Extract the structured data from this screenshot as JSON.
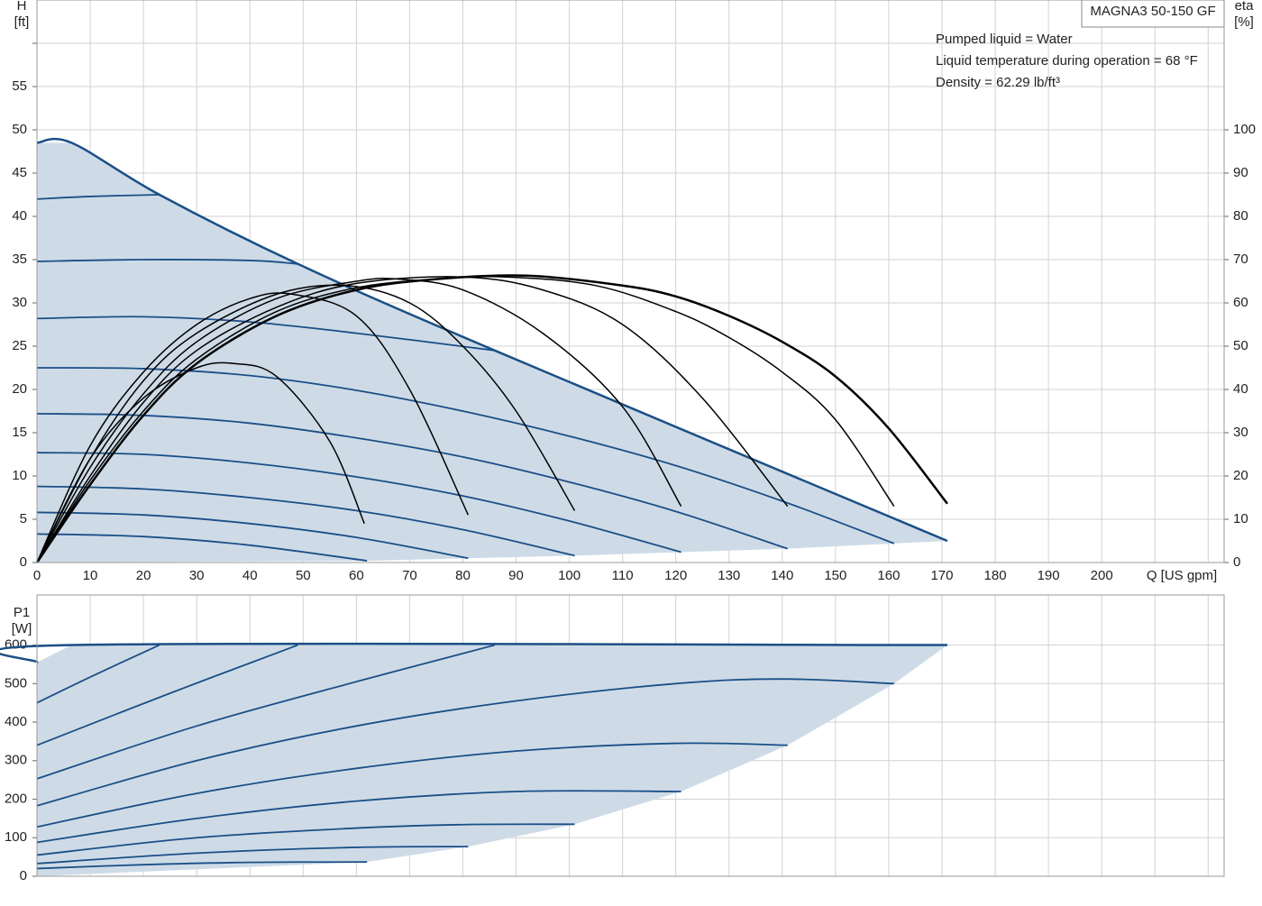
{
  "chart_data": [
    {
      "type": "line",
      "x_label": "Q [US gpm]",
      "y_label": [
        "H",
        "[ft]"
      ],
      "y2_label": [
        "eta",
        "[%]"
      ],
      "xlim": [
        0,
        223
      ],
      "ylim": [
        0,
        65
      ],
      "y2lim": [
        0,
        130
      ],
      "xticks": [
        0,
        10,
        20,
        30,
        40,
        50,
        60,
        70,
        80,
        90,
        100,
        110,
        120,
        130,
        140,
        150,
        160,
        170,
        180,
        190,
        200,
        {
          "value": 210,
          "label": null
        },
        {
          "value": 220,
          "label": null
        }
      ],
      "yticks": [
        0,
        5,
        10,
        15,
        20,
        25,
        30,
        35,
        40,
        45,
        50,
        55,
        {
          "value": 60,
          "label": null
        }
      ],
      "y2ticks": [
        0,
        10,
        20,
        30,
        40,
        50,
        60,
        70,
        80,
        90,
        100
      ],
      "grid": true,
      "area_color": "#cedbe7",
      "series": [
        {
          "color": "#1b4f86",
          "width": 2.5,
          "envelope": true,
          "x": [
            0,
            6.5,
            23,
            49,
            86,
            171
          ],
          "values": [
            48.5,
            48.5,
            42.5,
            34.5,
            24.5,
            2.5
          ]
        },
        {
          "color": "#1b4f86",
          "width": 1.8,
          "x": [
            0,
            10,
            23
          ],
          "values": [
            42,
            42.3,
            42.5
          ]
        },
        {
          "color": "#1b4f86",
          "width": 1.8,
          "x": [
            0,
            20,
            40,
            49
          ],
          "values": [
            34.8,
            35,
            34.9,
            34.5
          ]
        },
        {
          "color": "#1b4f86",
          "width": 1.8,
          "x": [
            0,
            20,
            40,
            60,
            86
          ],
          "values": [
            28.2,
            28.4,
            27.8,
            26.5,
            24.5
          ]
        },
        {
          "color": "#1b4f86",
          "width": 1.8,
          "x": [
            0,
            20,
            40,
            60,
            80,
            100,
            120,
            140,
            161
          ],
          "values": [
            22.5,
            22.4,
            21.6,
            19.9,
            17.5,
            14.6,
            11.2,
            7.1,
            2.2
          ]
        },
        {
          "color": "#1b4f86",
          "width": 1.8,
          "x": [
            0,
            20,
            40,
            60,
            80,
            100,
            120,
            141
          ],
          "values": [
            17.2,
            17,
            16.1,
            14.4,
            12.2,
            9.3,
            5.9,
            1.6
          ]
        },
        {
          "color": "#1b4f86",
          "width": 1.8,
          "x": [
            0,
            20,
            40,
            60,
            80,
            100,
            121
          ],
          "values": [
            12.7,
            12.5,
            11.5,
            9.9,
            7.7,
            4.8,
            1.2
          ]
        },
        {
          "color": "#1b4f86",
          "width": 1.8,
          "x": [
            0,
            20,
            40,
            60,
            80,
            101
          ],
          "values": [
            8.8,
            8.5,
            7.5,
            6,
            3.8,
            0.8
          ]
        },
        {
          "color": "#1b4f86",
          "width": 1.8,
          "x": [
            0,
            20,
            40,
            60,
            81
          ],
          "values": [
            5.8,
            5.5,
            4.5,
            2.9,
            0.5
          ]
        },
        {
          "color": "#1b4f86",
          "width": 1.8,
          "x": [
            0,
            20,
            40,
            62
          ],
          "values": [
            3.3,
            3,
            2,
            0.2
          ]
        },
        {
          "color": "#000000",
          "width": 1.5,
          "axis": "y2",
          "x": [
            0,
            10,
            20,
            30,
            37,
            45,
            55,
            61.5
          ],
          "values": [
            0,
            24,
            38,
            45,
            46,
            43,
            28,
            9
          ]
        },
        {
          "color": "#000000",
          "width": 1.5,
          "axis": "y2",
          "x": [
            0,
            10,
            20,
            30,
            40,
            48,
            60,
            70,
            81
          ],
          "values": [
            0,
            27,
            44,
            55,
            61,
            62,
            57,
            40,
            11
          ]
        },
        {
          "color": "#000000",
          "width": 1.5,
          "axis": "y2",
          "x": [
            0,
            10,
            20,
            30,
            45,
            58,
            70,
            80,
            90,
            101
          ],
          "values": [
            0,
            24,
            42,
            53,
            62,
            64,
            60,
            50,
            35,
            12
          ]
        },
        {
          "color": "#000000",
          "width": 1.5,
          "axis": "y2",
          "x": [
            0,
            10,
            20,
            30,
            45,
            60,
            68,
            80,
            95,
            110,
            121
          ],
          "values": [
            0,
            22,
            39,
            51,
            61,
            65,
            65.5,
            63,
            53,
            36,
            13
          ]
        },
        {
          "color": "#000000",
          "width": 1.5,
          "axis": "y2",
          "x": [
            0,
            10,
            20,
            30,
            45,
            60,
            80,
            95,
            110,
            125,
            141
          ],
          "values": [
            0,
            20,
            37,
            49,
            59,
            64.5,
            66,
            63,
            55,
            38,
            13
          ]
        },
        {
          "color": "#000000",
          "width": 1.5,
          "axis": "y2",
          "x": [
            0,
            10,
            20,
            30,
            45,
            60,
            75,
            88,
            105,
            120,
            130,
            140,
            150,
            161
          ],
          "values": [
            0,
            19,
            35,
            47,
            58,
            63.5,
            65.5,
            66,
            64,
            58,
            52,
            44,
            33,
            13
          ]
        },
        {
          "color": "#000000",
          "width": 2.5,
          "axis": "y2",
          "x": [
            0,
            10,
            20,
            30,
            45,
            60,
            75,
            92,
            110,
            120,
            130,
            140,
            150,
            160,
            171
          ],
          "values": [
            0,
            18,
            34,
            46,
            57,
            63,
            65.5,
            66.3,
            64,
            61.5,
            57,
            51,
            43,
            31,
            13.6
          ]
        }
      ]
    },
    {
      "type": "line",
      "y_label": [
        "P1",
        "[W]"
      ],
      "xlim": [
        0,
        223
      ],
      "ylim": [
        0,
        730
      ],
      "xticks": [
        0,
        10,
        20,
        30,
        40,
        50,
        60,
        70,
        80,
        90,
        100,
        110,
        120,
        130,
        140,
        150,
        160,
        170,
        180,
        190,
        200,
        210,
        220
      ],
      "xtick_labels": false,
      "yticks": [
        0,
        100,
        200,
        300,
        400,
        500,
        600
      ],
      "grid": true,
      "area_color": "#cedbe7",
      "series": [
        {
          "color": "#1b4f86",
          "width": 2.5,
          "envelope": true,
          "x": [
            0,
            6.5,
            171
          ],
          "values": [
            555,
            600,
            600
          ]
        },
        {
          "color": "#1b4f86",
          "width": 1.8,
          "x": [
            0,
            10,
            23
          ],
          "values": [
            450,
            517,
            600
          ]
        },
        {
          "color": "#1b4f86",
          "width": 1.8,
          "x": [
            0,
            25,
            49
          ],
          "values": [
            340,
            475,
            600
          ]
        },
        {
          "color": "#1b4f86",
          "width": 1.8,
          "x": [
            0,
            30,
            60,
            86
          ],
          "values": [
            253,
            390,
            505,
            600
          ]
        },
        {
          "color": "#1b4f86",
          "width": 1.8,
          "x": [
            0,
            30,
            60,
            90,
            120,
            140,
            161
          ],
          "values": [
            183,
            300,
            390,
            455,
            500,
            512,
            500
          ]
        },
        {
          "color": "#1b4f86",
          "width": 1.8,
          "x": [
            0,
            30,
            60,
            90,
            120,
            141
          ],
          "values": [
            128,
            215,
            280,
            325,
            345,
            340
          ]
        },
        {
          "color": "#1b4f86",
          "width": 1.8,
          "x": [
            0,
            30,
            60,
            90,
            121
          ],
          "values": [
            88,
            150,
            195,
            220,
            220
          ]
        },
        {
          "color": "#1b4f86",
          "width": 1.8,
          "x": [
            0,
            30,
            60,
            80,
            101
          ],
          "values": [
            55,
            100,
            125,
            134,
            135
          ]
        },
        {
          "color": "#1b4f86",
          "width": 1.8,
          "x": [
            0,
            30,
            60,
            81
          ],
          "values": [
            33,
            60,
            75,
            77
          ]
        },
        {
          "color": "#1b4f86",
          "width": 1.8,
          "x": [
            0,
            20,
            40,
            62
          ],
          "values": [
            20,
            30,
            36,
            37
          ]
        }
      ]
    }
  ],
  "info": {
    "product": "MAGNA3 50-150 GF",
    "lines": [
      "Pumped liquid = Water",
      "Liquid temperature during operation = 68 °F",
      "Density = 62.29 lb/ft³"
    ]
  }
}
